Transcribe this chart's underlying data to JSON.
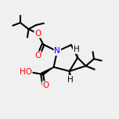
{
  "bg_color": "#f0f0f0",
  "bond_color": "#000000",
  "bond_width": 1.5,
  "atom_colors": {
    "N": "#0000ff",
    "O": "#ff0000",
    "H": "#000000",
    "C": "#000000"
  },
  "font_size_atom": 7.5,
  "font_size_small": 6.0
}
